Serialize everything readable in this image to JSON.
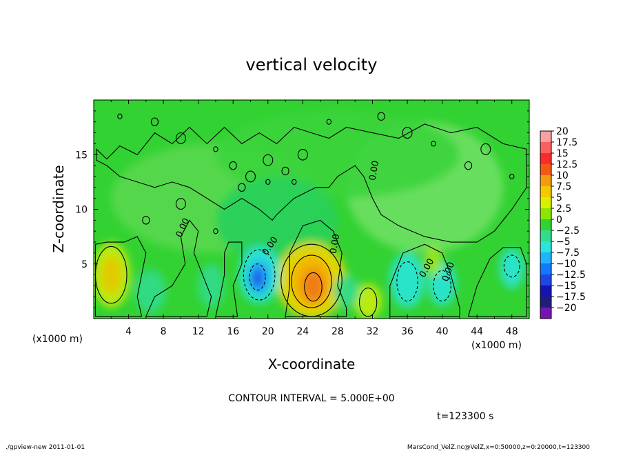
{
  "chart_data": {
    "type": "heatmap",
    "title": "vertical velocity",
    "xlabel": "X-coordinate",
    "ylabel": "Z-coordinate",
    "x_unit_left": "(x1000 m)",
    "x_unit_right": "(x1000 m)",
    "xlim": [
      0,
      50
    ],
    "ylim": [
      0,
      20
    ],
    "x_ticks": [
      "4",
      "8",
      "12",
      "16",
      "20",
      "24",
      "28",
      "32",
      "36",
      "40",
      "44",
      "48"
    ],
    "y_ticks": [
      "5",
      "10",
      "15"
    ],
    "colorbar": {
      "labels": [
        "20",
        "17.5",
        "15",
        "12.5",
        "10",
        "7.5",
        "5",
        "2.5",
        "0",
        "−2.5",
        "−5",
        "−7.5",
        "−10",
        "−12.5",
        "−15",
        "−17.5",
        "−20"
      ],
      "colors": [
        "#fba0a0",
        "#fb6060",
        "#fb2b2b",
        "#f55a14",
        "#f59b10",
        "#f5c800",
        "#d9f000",
        "#8ce600",
        "#32d232",
        "#32dc8c",
        "#2ae6d8",
        "#20b4ff",
        "#1478ff",
        "#1e46e6",
        "#1414b4",
        "#1e1e78",
        "#7814b4"
      ]
    },
    "contour_labels": [
      "0.00",
      "0.00",
      "0.00",
      "0.00",
      "0.00",
      "0.00"
    ],
    "contour_interval_text": "CONTOUR INTERVAL = 5.000E+00",
    "time_text": "t=123300  s"
  },
  "footer": {
    "left": "./gpview-new   2011-01-01",
    "right": "MarsCond_VelZ.nc@VelZ,x=0:50000,z=0:20000,t=123300"
  }
}
